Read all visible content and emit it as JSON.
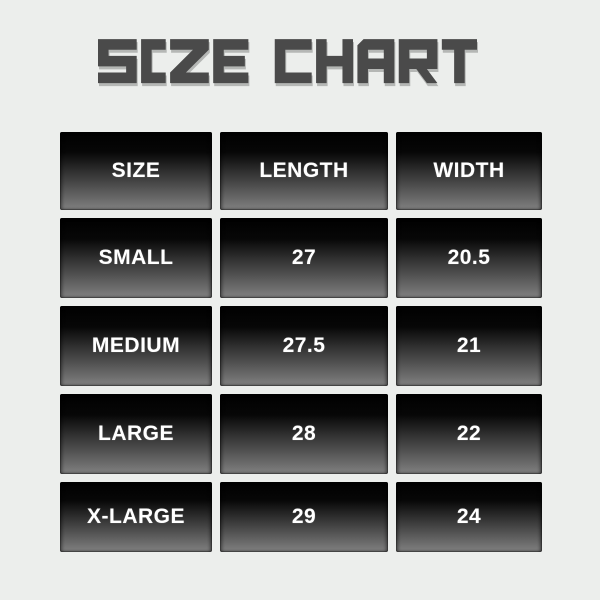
{
  "title": {
    "text": "SIZE CHART"
  },
  "colors": {
    "background": "#eceeec",
    "title": "#4a4a4a",
    "title_shadow": "#b5b7b5",
    "cell_gradient_top": "#000000",
    "cell_gradient_bottom": "#8e8e8e",
    "cell_text": "#ffffff"
  },
  "chart_data": {
    "type": "table",
    "title": "SIZE CHART",
    "columns": [
      "SIZE",
      "LENGTH",
      "WIDTH"
    ],
    "rows": [
      [
        "SMALL",
        "27",
        "20.5"
      ],
      [
        "MEDIUM",
        "27.5",
        "21"
      ],
      [
        "LARGE",
        "28",
        "22"
      ],
      [
        "X-LARGE",
        "29",
        "24"
      ]
    ]
  }
}
